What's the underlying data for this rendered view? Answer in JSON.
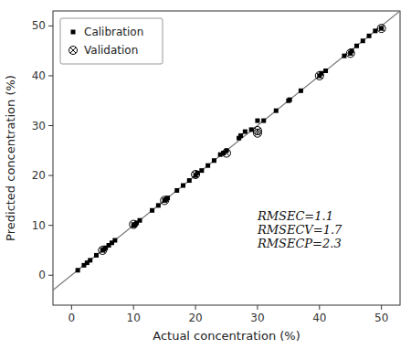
{
  "chart_data": {
    "type": "scatter",
    "xlabel": "Actual concentration (%)",
    "ylabel": "Predicted concentration (%)",
    "xlim": [
      -3,
      53
    ],
    "ylim": [
      -6,
      53
    ],
    "xticks": [
      0,
      10,
      20,
      30,
      40,
      50
    ],
    "yticks": [
      0,
      10,
      20,
      30,
      40,
      50
    ],
    "grid": false,
    "legend": "upper-left",
    "series": [
      {
        "type": "line",
        "color": "#777777",
        "line_style": "solid",
        "x": [
          -3,
          53
        ],
        "values": [
          -3,
          53
        ]
      },
      {
        "name": "Calibration",
        "type": "scatter",
        "color": "#000000",
        "marker": "square",
        "x": [
          1,
          2,
          2.5,
          3,
          4,
          5,
          5.2,
          5.5,
          6,
          6.5,
          7,
          10,
          10.2,
          10.5,
          11,
          13,
          14,
          15,
          15.2,
          15.5,
          17,
          18,
          19,
          20,
          20.3,
          21,
          22,
          23,
          24,
          24.5,
          25,
          27,
          27.3,
          28,
          29,
          30,
          31,
          33,
          35,
          35.2,
          37,
          40,
          40.3,
          41,
          44,
          45,
          45.2,
          46,
          47,
          48,
          49,
          50
        ],
        "values": [
          1,
          2,
          2.5,
          3,
          4,
          5,
          5.2,
          5.5,
          6,
          6.5,
          7,
          10,
          10.2,
          10.5,
          11,
          13,
          14,
          15,
          15.2,
          15.5,
          17,
          18,
          19,
          20,
          20.5,
          21,
          22,
          23,
          24.2,
          24.5,
          25,
          27.5,
          28,
          28.8,
          29.2,
          31,
          31,
          33,
          35,
          35.2,
          37,
          40,
          40.5,
          41,
          44,
          44.5,
          45,
          46,
          47,
          48,
          49,
          49.5
        ]
      },
      {
        "name": "Validation",
        "type": "scatter",
        "color": "#000000",
        "marker": "circle-x",
        "x": [
          5,
          10,
          15,
          20,
          25,
          30,
          30,
          40,
          45,
          50
        ],
        "values": [
          5,
          10.2,
          15,
          20.2,
          24.5,
          28.5,
          29,
          40,
          44.5,
          49.5
        ]
      }
    ],
    "annotations": [
      {
        "lines": [
          "RMSEC=1.1",
          "RMSECV=1.7",
          "RMSECP=2.3"
        ],
        "x": 30,
        "y": 5
      }
    ]
  }
}
